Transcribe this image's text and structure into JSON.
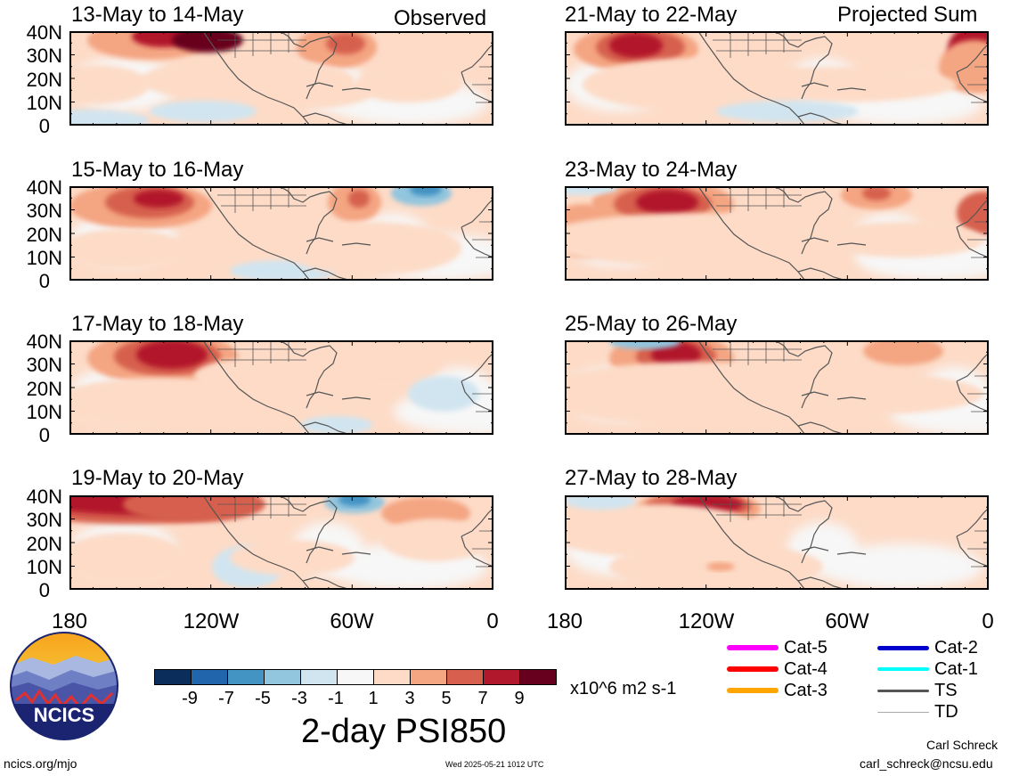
{
  "panels_left": [
    {
      "title": "13-May to 14-May",
      "tag": "Observed"
    },
    {
      "title": "15-May to 16-May",
      "tag": ""
    },
    {
      "title": "17-May to 18-May",
      "tag": ""
    },
    {
      "title": "19-May to 20-May",
      "tag": ""
    }
  ],
  "panels_right": [
    {
      "title": "21-May to 22-May",
      "tag": "Projected Sum"
    },
    {
      "title": "23-May to 24-May",
      "tag": ""
    },
    {
      "title": "25-May to 26-May",
      "tag": ""
    },
    {
      "title": "27-May to 28-May",
      "tag": ""
    }
  ],
  "lat_labels": [
    "40N",
    "30N",
    "20N",
    "10N",
    "0"
  ],
  "lon_labels": [
    "180",
    "120W",
    "60W",
    "0"
  ],
  "colorbar": {
    "colors": [
      "#0a2d5b",
      "#2166ac",
      "#4393c3",
      "#92c5de",
      "#d1e5f0",
      "#f7f7f7",
      "#fddbc7",
      "#f4a582",
      "#d6604d",
      "#b2182b",
      "#67001f"
    ],
    "labels": [
      "-9",
      "-7",
      "-5",
      "-3",
      "-1",
      "1",
      "3",
      "5",
      "7",
      "9"
    ],
    "units": "x10^6 m2 s-1"
  },
  "main_title": "2-day PSI850",
  "legend": [
    {
      "label": "Cat-5",
      "color": "#ff00ff"
    },
    {
      "label": "Cat-4",
      "color": "#ff0000"
    },
    {
      "label": "Cat-3",
      "color": "#ffa500"
    },
    {
      "label": "Cat-2",
      "color": "#0000cd"
    },
    {
      "label": "Cat-1",
      "color": "#00ffff"
    },
    {
      "label": "TS",
      "color": "#555555"
    },
    {
      "label": "TD",
      "color": "#aaaaaa"
    }
  ],
  "logo_text": "NCICS",
  "footer": {
    "site": "ncics.org/mjo",
    "timestamp": "Wed 2025-05-21 1012 UTC",
    "author": "Carl Schreck",
    "email": "carl_schreck@ncsu.edu"
  }
}
